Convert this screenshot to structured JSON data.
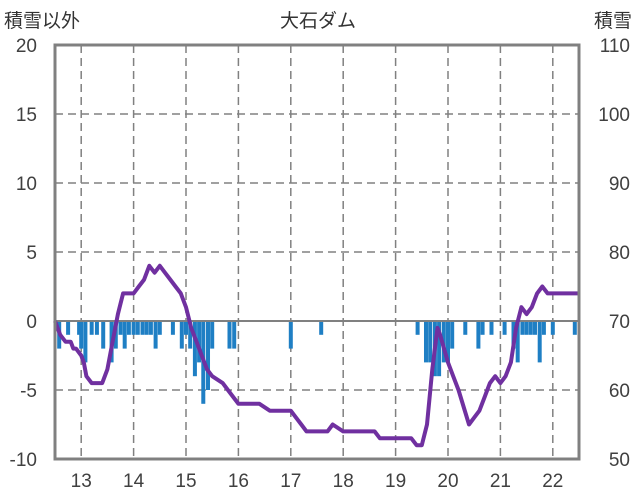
{
  "chart_data": {
    "type": "bar+line",
    "title": "大石ダム",
    "y_left_label": "積雪以外",
    "y_right_label": "積雪",
    "x_ticks": [
      "13",
      "14",
      "15",
      "16",
      "17",
      "18",
      "19",
      "20",
      "21",
      "22"
    ],
    "y_left_ticks": [
      "20",
      "15",
      "10",
      "5",
      "0",
      "-5",
      "-10"
    ],
    "y_right_ticks": [
      "110",
      "100",
      "90",
      "80",
      "70",
      "60",
      "50"
    ],
    "xlim": [
      12.5,
      22.5
    ],
    "ylim_left": [
      -10,
      20
    ],
    "ylim_right": [
      50,
      110
    ],
    "grid": true,
    "colors": {
      "bars": "#1f7fc4",
      "line": "#7030a0",
      "frame": "#808080",
      "grid": "#808080"
    },
    "series": [
      {
        "kind": "bar",
        "axis": "left",
        "x": [
          12.58,
          12.75,
          12.96,
          13.0,
          13.08,
          13.2,
          13.3,
          13.42,
          13.58,
          13.66,
          13.75,
          13.83,
          13.91,
          14.0,
          14.08,
          14.17,
          14.25,
          14.33,
          14.42,
          14.5,
          14.75,
          14.92,
          15.0,
          15.08,
          15.17,
          15.25,
          15.33,
          15.42,
          15.5,
          15.83,
          15.92,
          17.0,
          17.58,
          19.42,
          19.58,
          19.66,
          19.75,
          19.83,
          19.92,
          20.0,
          20.08,
          20.33,
          20.58,
          20.66,
          20.83,
          21.08,
          21.25,
          21.33,
          21.42,
          21.5,
          21.58,
          21.66,
          21.75,
          21.83,
          22.0,
          22.42
        ],
        "values": [
          -2,
          -1,
          -1,
          -2,
          -3,
          -1,
          -1,
          -2,
          -3,
          -2,
          -1,
          -2,
          -1,
          -1,
          -1,
          -1,
          -1,
          -1,
          -2,
          -1,
          -1,
          -2,
          -1,
          -2,
          -4,
          -3,
          -6,
          -5,
          -2,
          -2,
          -2,
          -2,
          -1,
          -1,
          -3,
          -3,
          -4,
          -4,
          -3,
          -3,
          -2,
          -1,
          -2,
          -1,
          -1,
          -1,
          -2,
          -3,
          -1,
          -1,
          -1,
          -1,
          -3,
          -1,
          -1,
          -1
        ]
      },
      {
        "kind": "line",
        "axis": "right",
        "x": [
          12.5,
          12.6,
          12.7,
          12.8,
          12.85,
          12.9,
          13.0,
          13.05,
          13.1,
          13.2,
          13.3,
          13.4,
          13.5,
          13.6,
          13.7,
          13.8,
          13.9,
          14.0,
          14.1,
          14.2,
          14.3,
          14.4,
          14.5,
          14.6,
          14.7,
          14.8,
          14.9,
          15.0,
          15.1,
          15.2,
          15.3,
          15.4,
          15.5,
          15.7,
          15.8,
          16.0,
          16.2,
          16.4,
          16.6,
          16.8,
          17.0,
          17.1,
          17.2,
          17.3,
          17.5,
          17.7,
          17.8,
          18.0,
          18.2,
          18.4,
          18.6,
          18.7,
          18.8,
          19.0,
          19.3,
          19.4,
          19.5,
          19.6,
          19.7,
          19.8,
          19.85,
          20.0,
          20.1,
          20.2,
          20.4,
          20.5,
          20.6,
          20.7,
          20.8,
          20.9,
          21.0,
          21.1,
          21.2,
          21.3,
          21.4,
          21.5,
          21.6,
          21.7,
          21.8,
          21.9,
          22.0,
          22.1,
          22.2,
          22.3,
          22.5
        ],
        "values": [
          70,
          68,
          67,
          67,
          66,
          66,
          65,
          64,
          62,
          61,
          61,
          61,
          63,
          67,
          71,
          74,
          74,
          74,
          75,
          76,
          78,
          77,
          78,
          77,
          76,
          75,
          74,
          72,
          69,
          67,
          65,
          63,
          62,
          61,
          60,
          58,
          58,
          58,
          57,
          57,
          57,
          56,
          55,
          54,
          54,
          54,
          55,
          54,
          54,
          54,
          54,
          53,
          53,
          53,
          53,
          52,
          52,
          55,
          63,
          69,
          68,
          64,
          62,
          60,
          55,
          56,
          57,
          59,
          61,
          62,
          61,
          62,
          64,
          69,
          72,
          71,
          72,
          74,
          75,
          74,
          74,
          74,
          74,
          74,
          74
        ]
      }
    ]
  }
}
